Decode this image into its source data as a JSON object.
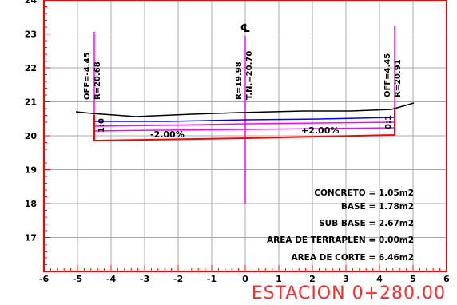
{
  "section": {
    "station": "ESTACION 0+280.00",
    "centerline_symbol": "℄",
    "x_axis": {
      "min": -6,
      "max": 6,
      "ticks": [
        "-6",
        "-5",
        "-4",
        "-3",
        "-2",
        "-1",
        "0",
        "1",
        "2",
        "3",
        "4",
        "5",
        "6"
      ]
    },
    "y_axis": {
      "min": 16,
      "max": 24,
      "ticks": [
        "24",
        "23",
        "22",
        "21",
        "20",
        "19",
        "18",
        "17"
      ]
    },
    "offset_labels": [
      {
        "id": "left",
        "lines": [
          "OFF=-4.45",
          "R=20.68"
        ],
        "x": -4.45
      },
      {
        "id": "center",
        "lines": [
          "R=19.98",
          "T.N.=20.70"
        ],
        "x": 0
      },
      {
        "id": "right",
        "lines": [
          "OFF=4.45",
          "R=20.91"
        ],
        "x": 4.45
      }
    ],
    "slopes": {
      "left": "-2.00%",
      "right": "+2.00%"
    },
    "side_slopes": {
      "left": "1:0",
      "right": "0:1"
    },
    "quantities": [
      {
        "label": "CONCRETO",
        "value": "1.05m2"
      },
      {
        "label": "BASE",
        "value": "1.78m2"
      },
      {
        "label": "SUB BASE",
        "value": "2.67m2"
      },
      {
        "label": "AREA DE TERRAPLEN",
        "value": "0.00m2"
      },
      {
        "label": "AREA DE CORTE",
        "value": "6.46m2"
      }
    ],
    "colors": {
      "frame": "#ff0000",
      "grid": "#a0a0a0",
      "terrain": "#000000",
      "base_layer": "#0000ff",
      "sub_layers": "#ff00ff",
      "station_text": "#ff2a2a"
    }
  }
}
